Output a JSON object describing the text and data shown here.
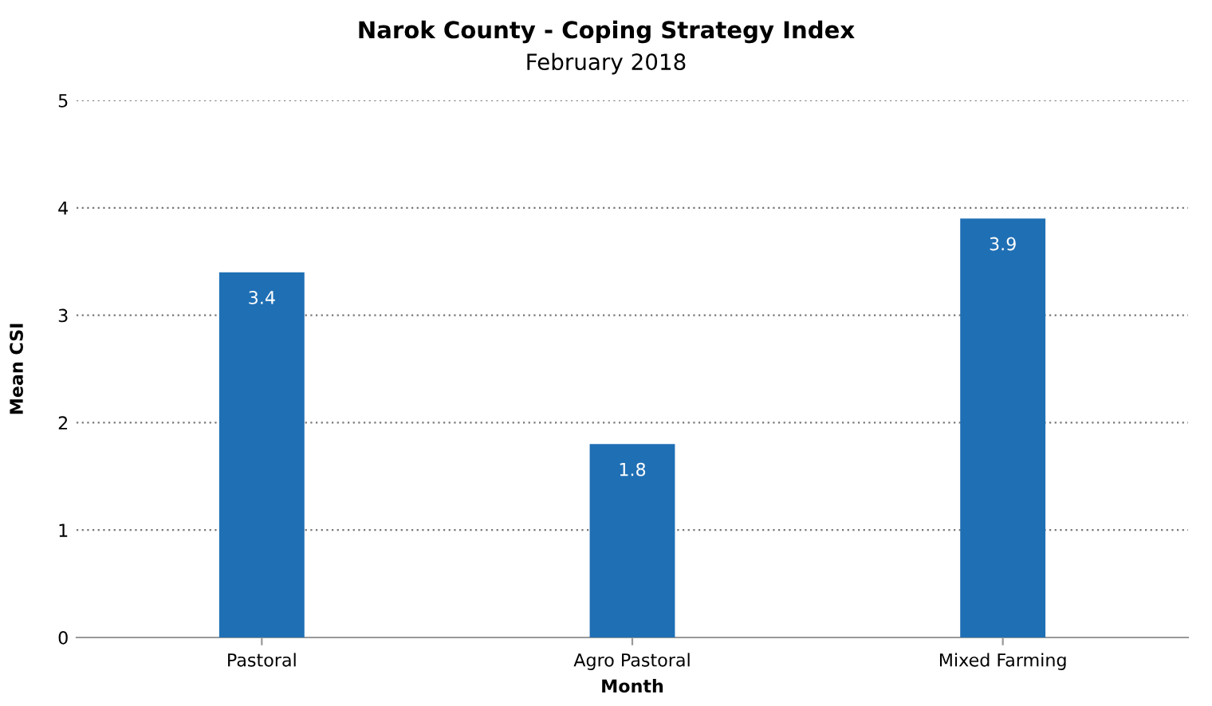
{
  "chart_data": {
    "type": "bar",
    "title": "Narok County - Coping Strategy Index",
    "subtitle": "February 2018",
    "xlabel": "Month",
    "ylabel": "Mean CSI",
    "categories": [
      "Pastoral",
      "Agro Pastoral",
      "Mixed Farming"
    ],
    "values": [
      3.4,
      1.8,
      3.9
    ],
    "color": "#1f6fb4",
    "ylim": [
      0,
      5
    ],
    "yticks": [
      0,
      1,
      2,
      3,
      4,
      5
    ],
    "grid": "y",
    "data_labels": true
  }
}
